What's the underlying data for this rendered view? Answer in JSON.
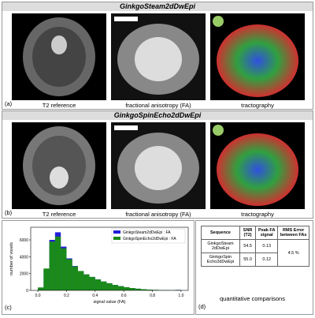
{
  "panels": [
    {
      "title": "GinkgoSteam2dDwEpi",
      "label": "(a)",
      "captions": [
        "T2 reference",
        "fractional anisotropy (FA)",
        "tractography"
      ]
    },
    {
      "title": "GinkgoSpinEcho2dDwEpi",
      "label": "(b)",
      "captions": [
        "T2 reference",
        "fractional anisotropy (FA)",
        "tractography"
      ]
    }
  ],
  "chart_data": {
    "type": "histogram",
    "label": "(c)",
    "x_label": "signal value (FA)",
    "y_label": "number of voxels",
    "bins": [
      0,
      0.04,
      0.08,
      0.12,
      0.16,
      0.2,
      0.24,
      0.28,
      0.32,
      0.36,
      0.4,
      0.44,
      0.48,
      0.52,
      0.56,
      0.6,
      0.64,
      0.68,
      0.72,
      0.76,
      0.8,
      0.84,
      0.88,
      0.92,
      0.96,
      1.0
    ],
    "series": [
      {
        "name": "GinkgoSteam2dDwEpi : FA",
        "color": "#1f1fd8",
        "values": [
          300,
          2500,
          6000,
          6900,
          5200,
          3800,
          2900,
          2300,
          1900,
          1600,
          1300,
          1050,
          850,
          650,
          500,
          380,
          280,
          200,
          140,
          90,
          60,
          40,
          25,
          15,
          60
        ]
      },
      {
        "name": "GinkgoSpinEcho2dDwEpi : FA",
        "color": "#1a8a1a",
        "values": [
          350,
          2600,
          5800,
          6400,
          5000,
          3700,
          2850,
          2300,
          1900,
          1600,
          1300,
          1050,
          850,
          650,
          500,
          380,
          280,
          200,
          140,
          90,
          60,
          40,
          25,
          15,
          40
        ]
      }
    ],
    "xlim": [
      -0.05,
      1.05
    ],
    "ylim": [
      0,
      7500
    ],
    "xticks": [
      {
        "value": 0,
        "label": "0.0"
      },
      {
        "value": 0.2,
        "label": "0.2"
      },
      {
        "value": 0.4,
        "label": "0.4"
      },
      {
        "value": 0.6,
        "label": "0.6"
      },
      {
        "value": 0.8,
        "label": "0.8"
      },
      {
        "value": 1.0,
        "label": "1.0"
      }
    ],
    "yticks": [
      0,
      2000,
      4000,
      6000
    ],
    "legend": "upper right"
  },
  "table": {
    "label": "(d)",
    "caption": "quantitative comparisons",
    "header": [
      "Sequence",
      "SNR (T2)",
      "Peak FA signal",
      "RMS Error between FAs"
    ],
    "rows": [
      [
        "GinkgoSteam 2dDwEpi",
        "54.5",
        "0.13"
      ],
      [
        "GinkgoSpin Echo2dDwEpi",
        "55.0",
        "0.12"
      ]
    ],
    "rms": "4.5 %"
  }
}
